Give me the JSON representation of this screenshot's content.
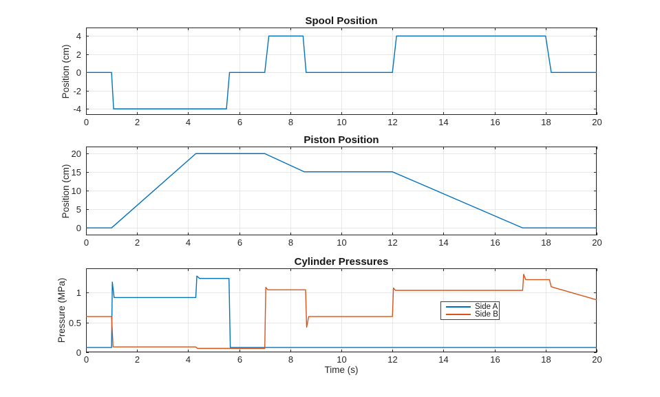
{
  "figure": {
    "background": "#ffffff",
    "axis_color": "#262626",
    "grid_color": "#e7e7e7",
    "tick_label_color": "#262626",
    "title_color": "#161616"
  },
  "chart_data": [
    {
      "type": "line",
      "title": "Spool Position",
      "xlabel": "",
      "ylabel": "Position (cm)",
      "xlim": [
        0,
        20
      ],
      "ylim": [
        -4.66,
        4.93
      ],
      "xticks": [
        0,
        2,
        4,
        6,
        8,
        10,
        12,
        14,
        16,
        18,
        20
      ],
      "yticks": [
        -4,
        -2,
        0,
        2,
        4
      ],
      "grid": true,
      "legend": null,
      "series": [
        {
          "name": "Spool",
          "color": "#0072BD",
          "points": [
            [
              0,
              0
            ],
            [
              1,
              0
            ],
            [
              1.08,
              -4
            ],
            [
              5.5,
              -4
            ],
            [
              5.62,
              0
            ],
            [
              7,
              0
            ],
            [
              7.16,
              4
            ],
            [
              8.5,
              4
            ],
            [
              8.62,
              0
            ],
            [
              12,
              0
            ],
            [
              12.16,
              4
            ],
            [
              18,
              4
            ],
            [
              18.22,
              0
            ],
            [
              20,
              0
            ]
          ]
        }
      ]
    },
    {
      "type": "line",
      "title": "Piston Position",
      "xlabel": "",
      "ylabel": "Position (cm)",
      "xlim": [
        0,
        20
      ],
      "ylim": [
        -2,
        21.9
      ],
      "xticks": [
        0,
        2,
        4,
        6,
        8,
        10,
        12,
        14,
        16,
        18,
        20
      ],
      "yticks": [
        0,
        5,
        10,
        15,
        20
      ],
      "grid": true,
      "legend": null,
      "series": [
        {
          "name": "Piston",
          "color": "#0072BD",
          "points": [
            [
              0,
              0
            ],
            [
              1,
              0
            ],
            [
              4.3,
              20
            ],
            [
              7,
              20
            ],
            [
              8.55,
              15.1
            ],
            [
              12,
              15.1
            ],
            [
              17.1,
              0
            ],
            [
              20,
              0
            ]
          ]
        }
      ]
    },
    {
      "type": "line",
      "title": "Cylinder Pressures",
      "xlabel": "Time (s)",
      "ylabel": "Pressure (MPa)",
      "xlim": [
        0,
        20
      ],
      "ylim": [
        0,
        1.41
      ],
      "xticks": [
        0,
        2,
        4,
        6,
        8,
        10,
        12,
        14,
        16,
        18,
        20
      ],
      "yticks": [
        0,
        0.5,
        1
      ],
      "grid": true,
      "legend": {
        "entries": [
          "Side A",
          "Side B"
        ],
        "position": "middle-right"
      },
      "series": [
        {
          "name": "Side A",
          "color": "#0072BD",
          "points": [
            [
              0,
              0.08
            ],
            [
              1,
              0.08
            ],
            [
              1.03,
              1.18
            ],
            [
              1.1,
              0.92
            ],
            [
              4.3,
              0.92
            ],
            [
              4.34,
              1.28
            ],
            [
              4.45,
              1.24
            ],
            [
              5.6,
              1.24
            ],
            [
              5.65,
              0.08
            ],
            [
              20,
              0.08
            ]
          ]
        },
        {
          "name": "Side B",
          "color": "#D95319",
          "points": [
            [
              0,
              0.6
            ],
            [
              1,
              0.6
            ],
            [
              1.06,
              0.09
            ],
            [
              4.3,
              0.09
            ],
            [
              4.36,
              0.065
            ],
            [
              7,
              0.065
            ],
            [
              7.04,
              1.09
            ],
            [
              7.12,
              1.05
            ],
            [
              8.6,
              1.05
            ],
            [
              8.64,
              0.42
            ],
            [
              8.72,
              0.6
            ],
            [
              12,
              0.6
            ],
            [
              12.04,
              1.08
            ],
            [
              12.12,
              1.04
            ],
            [
              17.1,
              1.04
            ],
            [
              17.14,
              1.31
            ],
            [
              17.22,
              1.22
            ],
            [
              18.15,
              1.22
            ],
            [
              18.22,
              1.1
            ],
            [
              20,
              0.88
            ]
          ]
        }
      ]
    }
  ]
}
